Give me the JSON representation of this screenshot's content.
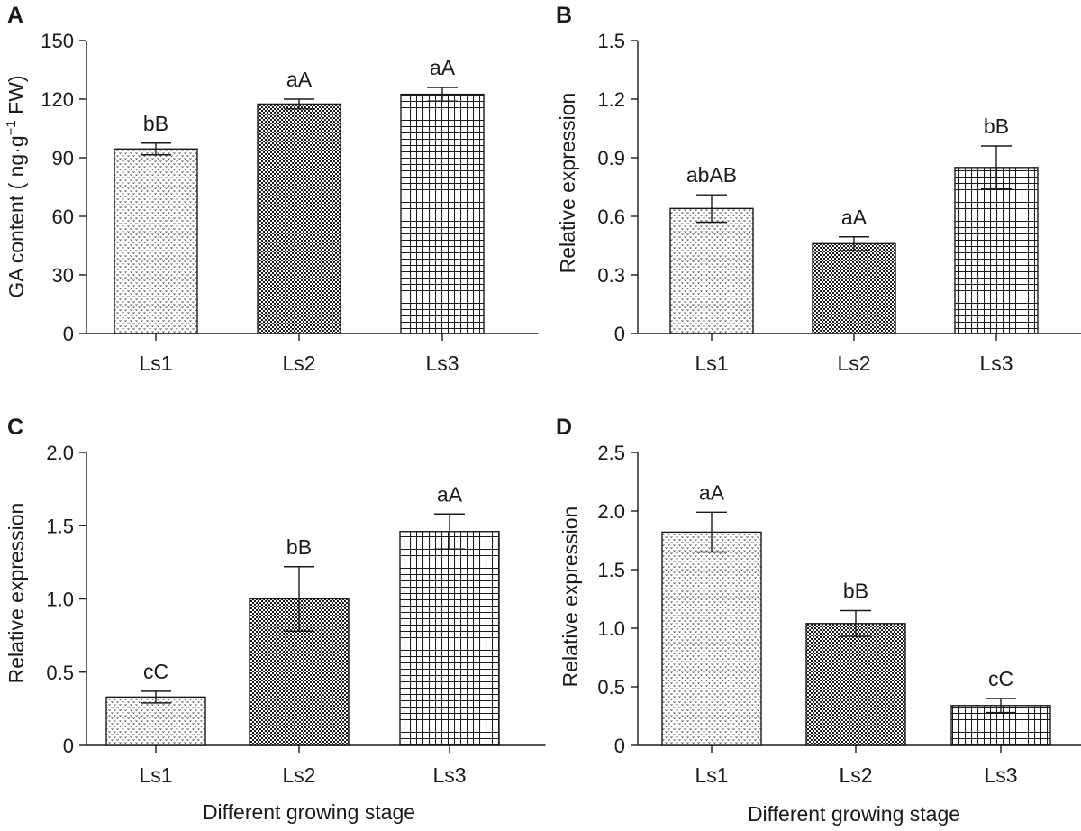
{
  "figure": {
    "x_title_bottom": "Different growing stage"
  },
  "chart_data": [
    {
      "type": "bar",
      "panel": "A",
      "title": "",
      "ylabel": "GA content ( ng·g",
      "ylabel_sup": "−1",
      "ylabel_tail": " FW)",
      "xlabel": "",
      "categories": [
        "Ls1",
        "Ls2",
        "Ls3"
      ],
      "values": [
        94.5,
        117.5,
        122.5
      ],
      "errors": [
        3,
        2.5,
        3.5
      ],
      "letters": [
        "bB",
        "aA",
        "aA"
      ],
      "patterns": [
        "dots",
        "checker",
        "grid"
      ],
      "ylim": [
        0,
        150
      ],
      "yticks": [
        0,
        30,
        60,
        90,
        120,
        150
      ],
      "ytick_labels": [
        "0",
        "30",
        "60",
        "90",
        "120",
        "150"
      ],
      "grid": false
    },
    {
      "type": "bar",
      "panel": "B",
      "title": "",
      "ylabel": "Relative expression",
      "xlabel": "",
      "categories": [
        "Ls1",
        "Ls2",
        "Ls3"
      ],
      "values": [
        0.64,
        0.46,
        0.85
      ],
      "errors": [
        0.07,
        0.035,
        0.11
      ],
      "letters": [
        "abAB",
        "aA",
        "bB"
      ],
      "patterns": [
        "dots",
        "checker",
        "grid"
      ],
      "ylim": [
        0,
        1.5
      ],
      "yticks": [
        0,
        0.3,
        0.6,
        0.9,
        1.2,
        1.5
      ],
      "ytick_labels": [
        "0",
        "0.3",
        "0.6",
        "0.9",
        "1.2",
        "1.5"
      ],
      "grid": false
    },
    {
      "type": "bar",
      "panel": "C",
      "title": "",
      "ylabel": "Relative expression",
      "xlabel": "Different growing stage",
      "categories": [
        "Ls1",
        "Ls2",
        "Ls3"
      ],
      "values": [
        0.33,
        1.0,
        1.46
      ],
      "errors": [
        0.04,
        0.22,
        0.12
      ],
      "letters": [
        "cC",
        "bB",
        "aA"
      ],
      "patterns": [
        "dots",
        "checker",
        "grid"
      ],
      "ylim": [
        0,
        2.0
      ],
      "yticks": [
        0,
        0.5,
        1.0,
        1.5,
        2.0
      ],
      "ytick_labels": [
        "0",
        "0.5",
        "1.0",
        "1.5",
        "2.0"
      ],
      "grid": false
    },
    {
      "type": "bar",
      "panel": "D",
      "title": "",
      "ylabel": "Relative expression",
      "xlabel": "Different growing stage",
      "categories": [
        "Ls1",
        "Ls2",
        "Ls3"
      ],
      "values": [
        1.82,
        1.04,
        0.34
      ],
      "errors": [
        0.17,
        0.11,
        0.06
      ],
      "letters": [
        "aA",
        "bB",
        "cC"
      ],
      "patterns": [
        "dots",
        "checker",
        "grid"
      ],
      "ylim": [
        0,
        2.5
      ],
      "yticks": [
        0,
        0.5,
        1.0,
        1.5,
        2.0,
        2.5
      ],
      "ytick_labels": [
        "0",
        "0.5",
        "1.0",
        "1.5",
        "2.0",
        "2.5"
      ],
      "grid": false
    }
  ]
}
